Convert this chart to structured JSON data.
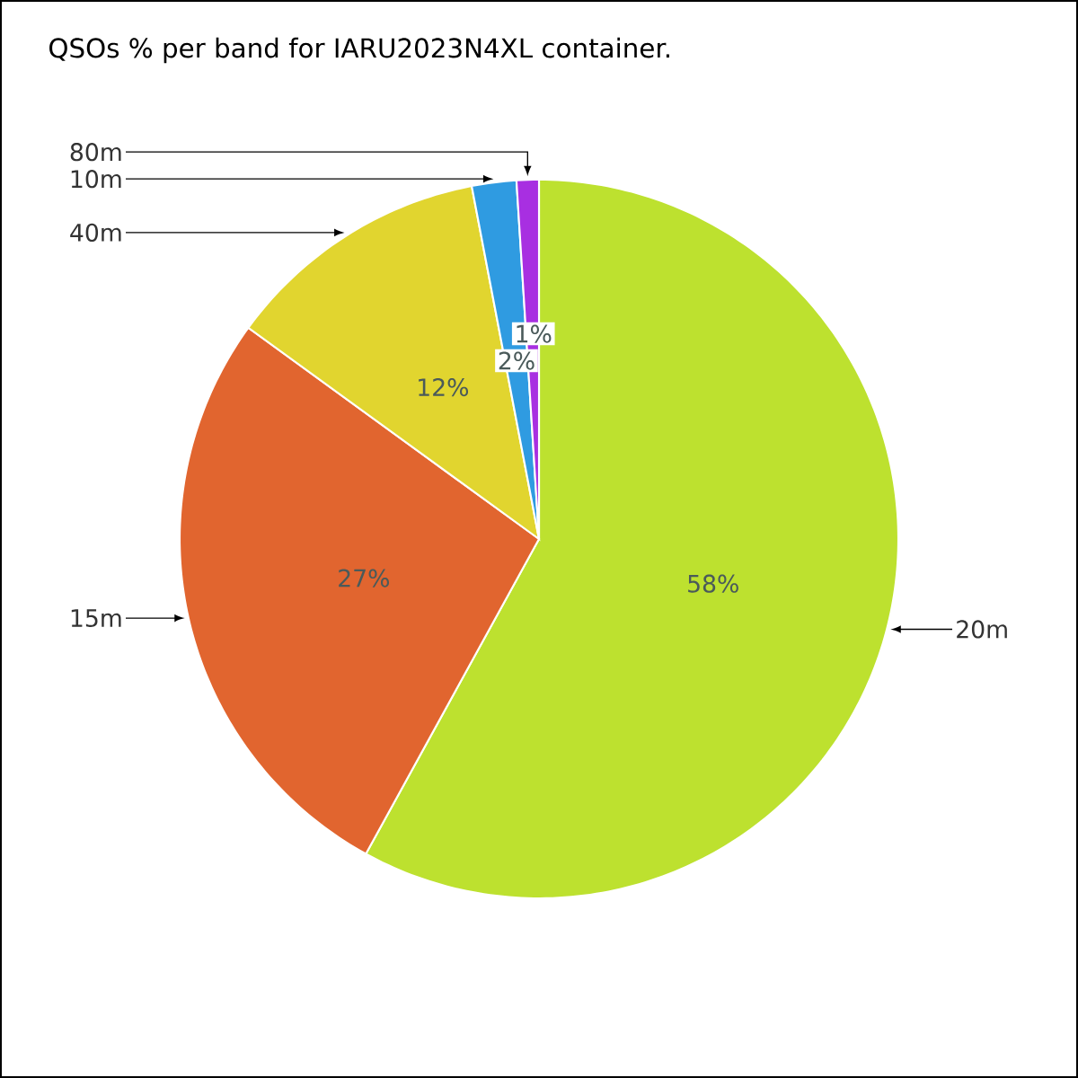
{
  "chart_data": {
    "type": "pie",
    "title": "QSOs % per band for IARU2023N4XL container.",
    "categories": [
      "20m",
      "15m",
      "40m",
      "10m",
      "80m"
    ],
    "values": [
      58,
      27,
      12,
      2,
      1
    ],
    "colors": [
      "#bde12f",
      "#e1652f",
      "#e1d52f",
      "#2f9be1",
      "#a82fe1"
    ],
    "value_labels": [
      "58%",
      "27%",
      "12%",
      "2%",
      "1%"
    ]
  }
}
